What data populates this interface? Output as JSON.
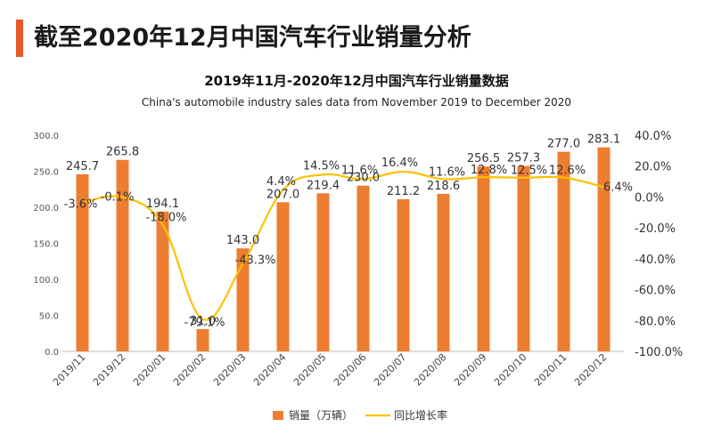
{
  "header": {
    "page_title": "截至2020年12月中国汽车行业销量分析",
    "chart_title": "2019年11月-2020年12月中国汽车行业销量数据",
    "chart_subtitle": "China's automobile industry sales data from November 2019 to December 2020"
  },
  "colors": {
    "accent": "#e8582a",
    "bar": "#ed7d31",
    "line": "#ffc000"
  },
  "chart_data": {
    "type": "bar",
    "categories": [
      "2019/11",
      "2019/12",
      "2020/01",
      "2020/02",
      "2020/03",
      "2020/04",
      "2020/05",
      "2020/06",
      "2020/07",
      "2020/08",
      "2020/09",
      "2020/10",
      "2020/11",
      "2020/12"
    ],
    "series": [
      {
        "name": "销量（万辆）",
        "axis": "left",
        "type": "bar",
        "values": [
          245.7,
          265.8,
          194.1,
          31.0,
          143.0,
          207.0,
          219.4,
          230.0,
          211.2,
          218.6,
          256.5,
          257.3,
          277.0,
          283.1
        ],
        "labels": [
          "245.7",
          "265.8",
          "194.1",
          "31.0",
          "143.0",
          "207.0",
          "219.4",
          "230.0",
          "211.2",
          "218.6",
          "256.5",
          "257.3",
          "277.0",
          "283.1"
        ]
      },
      {
        "name": "同比增长率",
        "axis": "right",
        "type": "line",
        "values": [
          -3.6,
          -0.1,
          -18.0,
          -79.1,
          -43.3,
          4.4,
          14.5,
          11.6,
          16.4,
          11.6,
          12.8,
          12.5,
          12.6,
          6.4
        ],
        "labels": [
          "-3.6%",
          "-0.1%",
          "-18.0%",
          "-79.1%",
          "-43.3%",
          "4.4%",
          "14.5%",
          "11.6%",
          "16.4%",
          "11.6%",
          "12.8%",
          "12.5%",
          "12.6%",
          "6.4%"
        ]
      }
    ],
    "y_left": {
      "ylim": [
        0,
        300
      ],
      "ticks": [
        "0.0",
        "50.0",
        "100.0",
        "150.0",
        "200.0",
        "250.0",
        "300.0"
      ]
    },
    "y_right": {
      "ylim": [
        -100,
        40
      ],
      "ticks": [
        "-100.0%",
        "-80.0%",
        "-60.0%",
        "-40.0%",
        "-20.0%",
        "0.0%",
        "20.0%",
        "40.0%"
      ]
    },
    "legend": {
      "position": "bottom",
      "items": [
        "销量（万辆）",
        "同比增长率"
      ]
    }
  }
}
